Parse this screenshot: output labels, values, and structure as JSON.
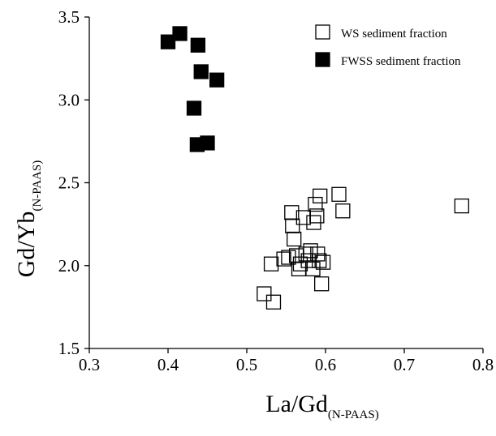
{
  "chart_data": {
    "type": "scatter",
    "title": "",
    "xlabel": {
      "main": "La/Gd",
      "sub": "(N-PAAS)"
    },
    "ylabel": {
      "main": "Gd/Yb",
      "sub": "(N-PAAS)"
    },
    "xlim": [
      0.3,
      0.8
    ],
    "ylim": [
      1.5,
      3.5
    ],
    "xticks": [
      0.3,
      0.4,
      0.5,
      0.6,
      0.7,
      0.8
    ],
    "yticks": [
      1.5,
      2.0,
      2.5,
      3.0,
      3.5
    ],
    "xtick_labels": [
      "0.3",
      "0.4",
      "0.5",
      "0.6",
      "0.7",
      "0.8"
    ],
    "ytick_labels": [
      "1.5",
      "2.0",
      "2.5",
      "3.0",
      "3.5"
    ],
    "grid": false,
    "legend_position": "top-right",
    "series": [
      {
        "name": "WS sediment fraction",
        "marker": "open-square",
        "color": "#000000",
        "points": [
          [
            0.522,
            1.83
          ],
          [
            0.534,
            1.78
          ],
          [
            0.531,
            2.01
          ],
          [
            0.547,
            2.04
          ],
          [
            0.553,
            2.05
          ],
          [
            0.557,
            2.32
          ],
          [
            0.558,
            2.24
          ],
          [
            0.56,
            2.16
          ],
          [
            0.563,
            2.06
          ],
          [
            0.566,
            1.98
          ],
          [
            0.568,
            2.01
          ],
          [
            0.572,
            2.29
          ],
          [
            0.575,
            2.07
          ],
          [
            0.578,
            2.03
          ],
          [
            0.581,
            2.09
          ],
          [
            0.584,
            1.98
          ],
          [
            0.585,
            2.26
          ],
          [
            0.587,
            2.37
          ],
          [
            0.589,
            2.3
          ],
          [
            0.59,
            2.07
          ],
          [
            0.592,
            2.03
          ],
          [
            0.593,
            2.42
          ],
          [
            0.595,
            1.89
          ],
          [
            0.597,
            2.02
          ],
          [
            0.617,
            2.43
          ],
          [
            0.622,
            2.33
          ],
          [
            0.773,
            2.36
          ]
        ]
      },
      {
        "name": "FWSS sediment fraction",
        "marker": "filled-square",
        "color": "#000000",
        "points": [
          [
            0.4,
            3.35
          ],
          [
            0.415,
            3.4
          ],
          [
            0.438,
            3.33
          ],
          [
            0.442,
            3.17
          ],
          [
            0.462,
            3.12
          ],
          [
            0.433,
            2.95
          ],
          [
            0.437,
            2.73
          ],
          [
            0.45,
            2.74
          ]
        ]
      }
    ]
  }
}
